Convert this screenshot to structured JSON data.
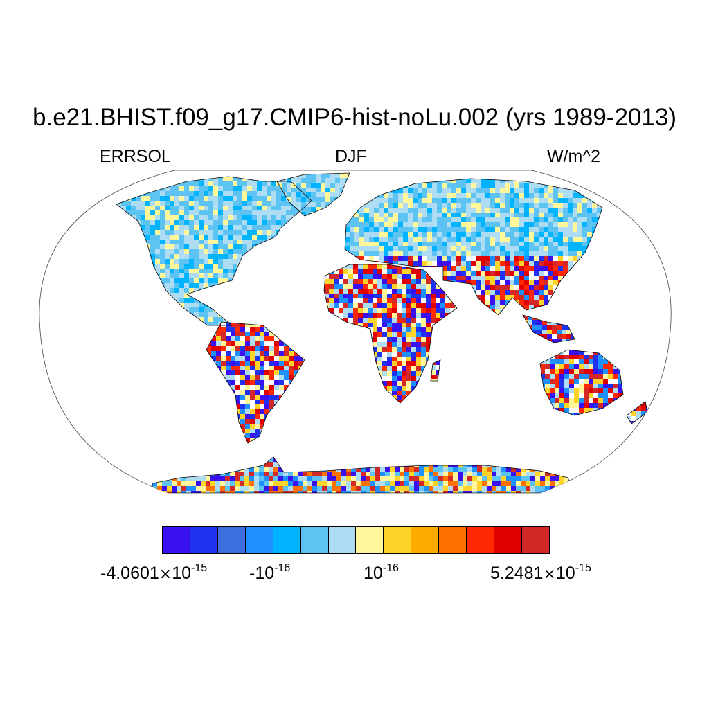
{
  "title": "b.e21.BHIST.f09_g17.CMIP6-hist-noLu.002 (yrs 1989-2013)",
  "subtitle_left": "ERRSOL",
  "subtitle_center": "DJF",
  "subtitle_right": "W/m^2",
  "colorbar": {
    "colors": [
      "#3a10f0",
      "#1e32f0",
      "#3c6ee0",
      "#1e90ff",
      "#00b4ff",
      "#5cc3f2",
      "#aedcf2",
      "#fff79a",
      "#ffd42a",
      "#ffaa00",
      "#ff7200",
      "#ff2800",
      "#e00000",
      "#d22828"
    ],
    "labels": [
      {
        "mantissa": "-4.0601",
        "times": "×",
        "base": "10",
        "exponent": "-15"
      },
      {
        "mantissa": "-",
        "base": "10",
        "exponent": "-16"
      },
      {
        "mantissa": "",
        "base": "10",
        "exponent": "-16"
      },
      {
        "mantissa": "5.2481",
        "times": "×",
        "base": "10",
        "exponent": "-15"
      }
    ]
  }
}
